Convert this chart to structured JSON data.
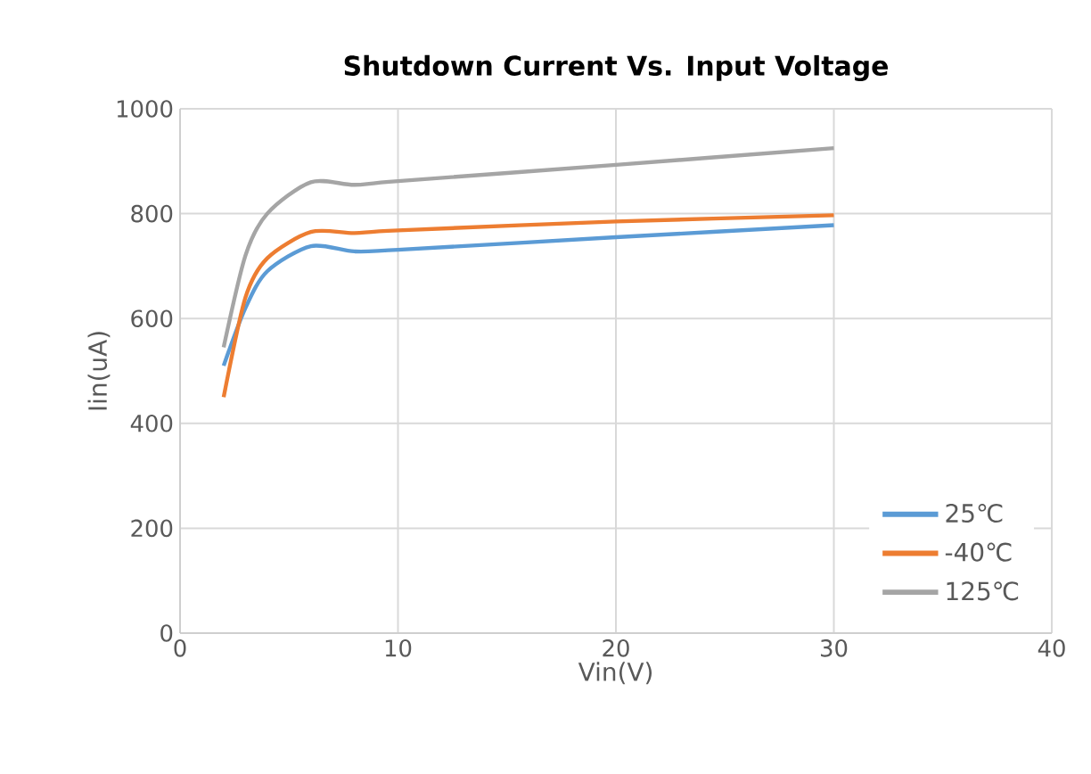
{
  "chart_data": {
    "type": "line",
    "title": "Shutdown Current Vs. Input Voltage",
    "xlabel": "Vin(V)",
    "ylabel": "Iin(uA)",
    "x": [
      2,
      3,
      4,
      6,
      8,
      10,
      20,
      30
    ],
    "series": [
      {
        "name": "25℃",
        "color": "#5b9bd5",
        "values": [
          510,
          620,
          690,
          738,
          728,
          731,
          755,
          778
        ]
      },
      {
        "name": "-40℃",
        "color": "#ed7d31",
        "values": [
          450,
          640,
          715,
          765,
          763,
          768,
          785,
          797
        ]
      },
      {
        "name": "125℃",
        "color": "#a5a5a5",
        "values": [
          545,
          720,
          800,
          860,
          855,
          862,
          893,
          925
        ]
      }
    ],
    "xlim": [
      0,
      40
    ],
    "xticks": [
      0,
      10,
      20,
      30,
      40
    ],
    "ylim": [
      0,
      1000
    ],
    "yticks": [
      0,
      200,
      400,
      600,
      800,
      1000
    ],
    "grid": true,
    "legend": "bottom right",
    "marker": "none",
    "line_style": "solid"
  }
}
